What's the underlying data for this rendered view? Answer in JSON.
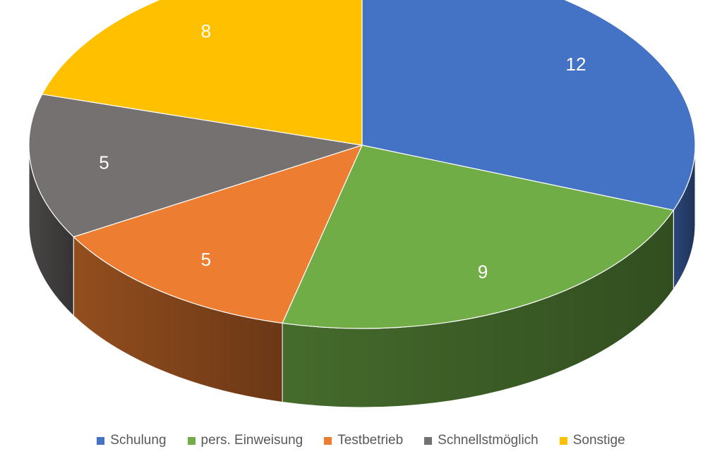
{
  "chart_data": {
    "type": "pie",
    "categories": [
      "Schulung",
      "pers. Einweisung",
      "Testbetrieb",
      "Schnellstmöglich",
      "Sonstige"
    ],
    "values": [
      12,
      9,
      5,
      5,
      8
    ],
    "data_labels": [
      "12",
      "9",
      "5",
      "5",
      "8"
    ],
    "colors": [
      "#4472C4",
      "#70AD47",
      "#ED7D31",
      "#767171",
      "#FFC000"
    ],
    "title": "",
    "legend": "bottom",
    "style": "3d-pie"
  }
}
